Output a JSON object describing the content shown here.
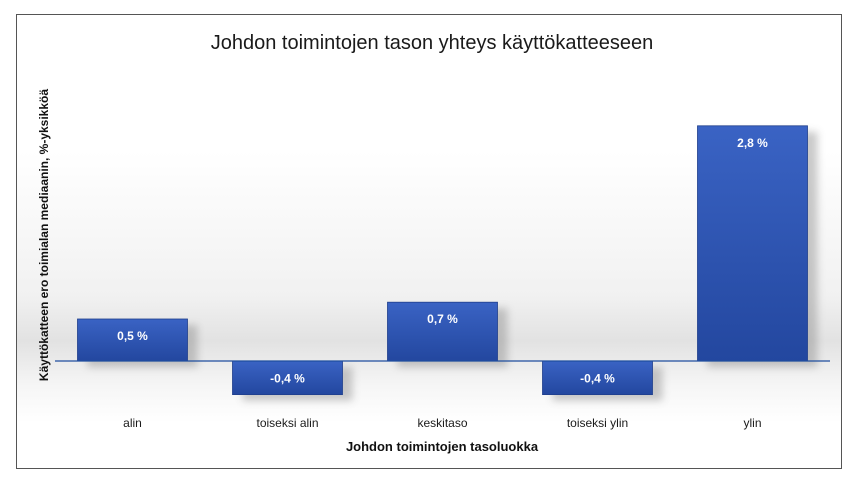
{
  "chart_data": {
    "type": "bar",
    "title": "Johdon toimintojen tason yhteys käyttökatteeseen",
    "xlabel": "Johdon toimintojen tasoluokka",
    "ylabel": "Käyttökatteen ero toimialan mediaanin, %-yksikköä",
    "categories": [
      "alin",
      "toiseksi alin",
      "keskitaso",
      "toiseksi ylin",
      "ylin"
    ],
    "values": [
      0.5,
      -0.4,
      0.7,
      -0.4,
      2.8
    ],
    "data_labels": [
      "0,5 %",
      "-0,4 %",
      "0,7 %",
      "-0,4 %",
      "2,8 %"
    ],
    "ylim": [
      -0.4,
      2.8
    ],
    "grid": false,
    "legend": "none",
    "colors": {
      "bar": "#2f55b4",
      "bar_dark": "#203f8c",
      "axis": "#1f4e9e",
      "label": "#ffffff"
    }
  }
}
